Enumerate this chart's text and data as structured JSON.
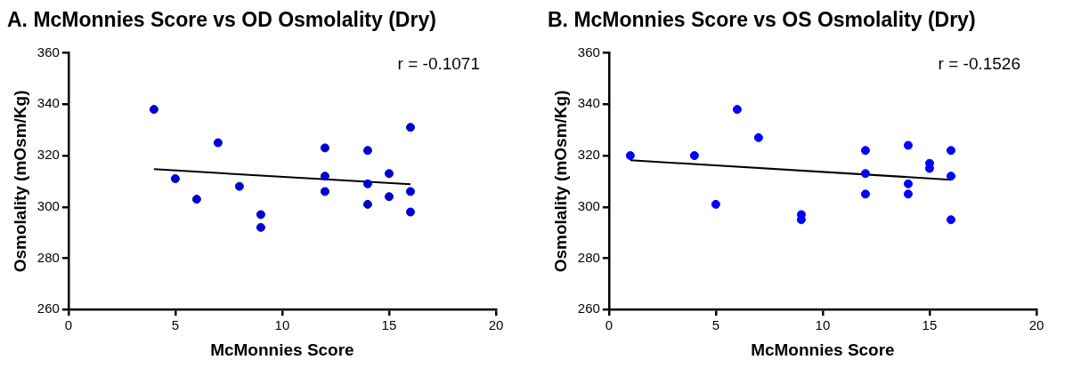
{
  "chart_data": [
    {
      "type": "scatter",
      "title": "A. McMonnies Score vs OD Osmolality (Dry)",
      "xlabel": "McMonnies Score",
      "ylabel": "Osmolality (mOsm/Kg)",
      "xlim": [
        0,
        20
      ],
      "xticks": [
        0,
        5,
        10,
        15,
        20
      ],
      "ylim": [
        260,
        360
      ],
      "yticks": [
        260,
        280,
        300,
        320,
        340,
        360
      ],
      "grid": false,
      "legend": false,
      "marker": "circle",
      "annotations": [
        "r = -0.1071"
      ],
      "series": [
        {
          "color": "#0000cc",
          "x": [
            4,
            5,
            6,
            7,
            8,
            9,
            9,
            12,
            12,
            12,
            14,
            14,
            14,
            15,
            15,
            16,
            16,
            16
          ],
          "values": [
            338,
            311,
            303,
            325,
            308,
            297,
            292,
            323,
            312,
            306,
            322,
            309,
            301,
            313,
            304,
            331,
            306,
            298
          ]
        },
        {
          "type": "line",
          "color": "#000000",
          "marker": "none",
          "x": [
            4,
            16
          ],
          "values": [
            314.7,
            308.8
          ]
        }
      ]
    },
    {
      "type": "scatter",
      "title": "B. McMonnies Score vs OS Osmolality (Dry)",
      "xlabel": "McMonnies Score",
      "ylabel": "Osmolality (mOsm/Kg)",
      "xlim": [
        0,
        20
      ],
      "xticks": [
        0,
        5,
        10,
        15,
        20
      ],
      "ylim": [
        260,
        360
      ],
      "yticks": [
        260,
        280,
        300,
        320,
        340,
        360
      ],
      "grid": false,
      "legend": false,
      "marker": "circle",
      "annotations": [
        "r = -0.1526"
      ],
      "series": [
        {
          "color": "#0000ff",
          "x": [
            1,
            4,
            5,
            6,
            7,
            9,
            9,
            12,
            12,
            12,
            14,
            14,
            14,
            15,
            15,
            16,
            16,
            16
          ],
          "values": [
            320,
            320,
            301,
            338,
            327,
            297,
            295,
            322,
            313,
            305,
            324,
            309,
            305,
            317,
            315,
            322,
            312,
            295
          ]
        },
        {
          "type": "line",
          "color": "#000000",
          "marker": "none",
          "x": [
            1,
            16
          ],
          "values": [
            318.2,
            310.6
          ]
        }
      ]
    }
  ]
}
